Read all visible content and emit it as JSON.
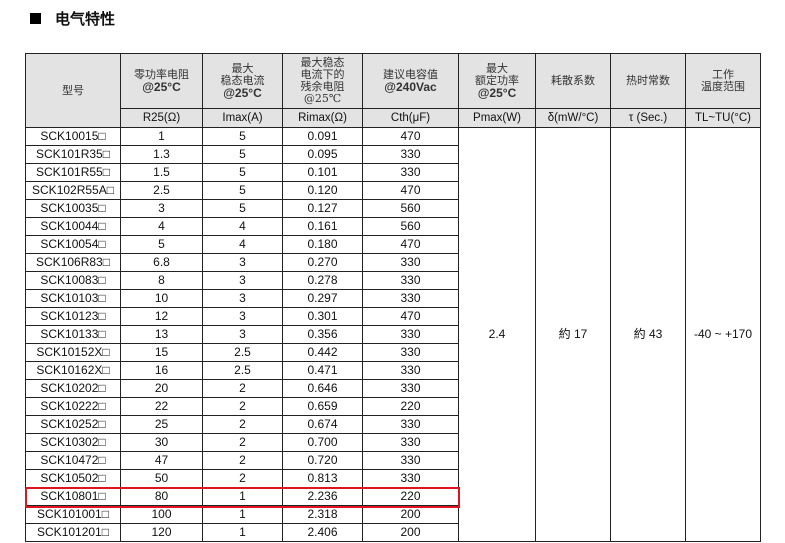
{
  "title": "电气特性",
  "highlight_color": "#e0141e",
  "headers": [
    {
      "cn": "型号",
      "en": "",
      "unit": ""
    },
    {
      "cn": "零功率电阻",
      "en": "@25°C",
      "unit": "R25(Ω)"
    },
    {
      "cn": "最大\n稳态电流",
      "en": "@25°C",
      "unit": "Imax(A)"
    },
    {
      "cn": "最大稳态\n电流下的\n残余电阻\n@25℃",
      "en": "",
      "unit": "Rimax(Ω)"
    },
    {
      "cn": "建议电容值",
      "en": "@240Vac",
      "unit": "Cth(μF)"
    },
    {
      "cn": "最大\n额定功率",
      "en": "@25°C",
      "unit": "Pmax(W)"
    },
    {
      "cn": "耗散系数",
      "en": "",
      "unit": "δ(mW/°C)"
    },
    {
      "cn": "热时常数",
      "en": "",
      "unit": "τ (Sec.)"
    },
    {
      "cn": "工作\n温度范围",
      "en": "",
      "unit": "TL~TU(°C)"
    }
  ],
  "shared": {
    "pmax": "2.4",
    "delta": "約 17",
    "tau": "約 43",
    "temp": "-40 ~ +170"
  },
  "rows": [
    [
      "SCK10015□",
      "1",
      "5",
      "0.091",
      "470"
    ],
    [
      "SCK101R35□",
      "1.3",
      "5",
      "0.095",
      "330"
    ],
    [
      "SCK101R55□",
      "1.5",
      "5",
      "0.101",
      "330"
    ],
    [
      "SCK102R55A□",
      "2.5",
      "5",
      "0.120",
      "470"
    ],
    [
      "SCK10035□",
      "3",
      "5",
      "0.127",
      "560"
    ],
    [
      "SCK10044□",
      "4",
      "4",
      "0.161",
      "560"
    ],
    [
      "SCK10054□",
      "5",
      "4",
      "0.180",
      "470"
    ],
    [
      "SCK106R83□",
      "6.8",
      "3",
      "0.270",
      "330"
    ],
    [
      "SCK10083□",
      "8",
      "3",
      "0.278",
      "330"
    ],
    [
      "SCK10103□",
      "10",
      "3",
      "0.297",
      "330"
    ],
    [
      "SCK10123□",
      "12",
      "3",
      "0.301",
      "470"
    ],
    [
      "SCK10133□",
      "13",
      "3",
      "0.356",
      "330"
    ],
    [
      "SCK10152X□",
      "15",
      "2.5",
      "0.442",
      "330"
    ],
    [
      "SCK10162X□",
      "16",
      "2.5",
      "0.471",
      "330"
    ],
    [
      "SCK10202□",
      "20",
      "2",
      "0.646",
      "330"
    ],
    [
      "SCK10222□",
      "22",
      "2",
      "0.659",
      "220"
    ],
    [
      "SCK10252□",
      "25",
      "2",
      "0.674",
      "330"
    ],
    [
      "SCK10302□",
      "30",
      "2",
      "0.700",
      "330"
    ],
    [
      "SCK10472□",
      "47",
      "2",
      "0.720",
      "330"
    ],
    [
      "SCK10502□",
      "50",
      "2",
      "0.813",
      "330"
    ],
    [
      "SCK10801□",
      "80",
      "1",
      "2.236",
      "220"
    ],
    [
      "SCK101001□",
      "100",
      "1",
      "2.318",
      "200"
    ],
    [
      "SCK101201□",
      "120",
      "1",
      "2.406",
      "200"
    ]
  ]
}
